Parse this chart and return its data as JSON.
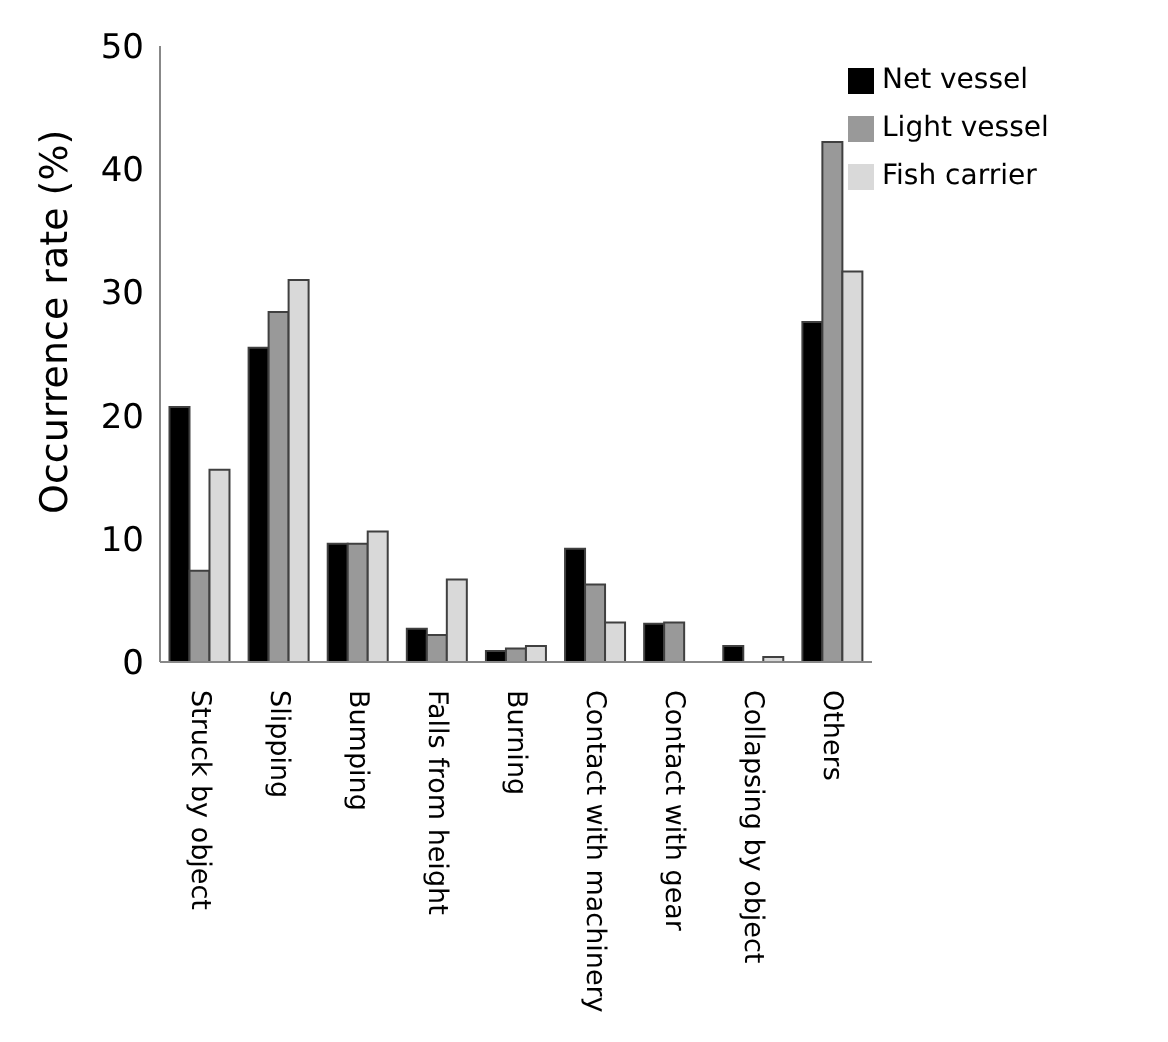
{
  "chart_data": {
    "type": "bar",
    "ylabel": "Occurrence rate (%)",
    "categories": [
      "Struck by object",
      "Slipping",
      "Bumping",
      "Falls from height",
      "Burning",
      "Contact with machinery",
      "Contact with gear",
      "Collapsing by object",
      "Others"
    ],
    "series": [
      {
        "name": "Net vessel",
        "color": "#000000",
        "values": [
          20.7,
          25.5,
          9.6,
          2.7,
          0.9,
          9.2,
          3.1,
          1.3,
          27.6
        ]
      },
      {
        "name": "Light vessel",
        "color": "#999999",
        "values": [
          7.4,
          28.4,
          9.6,
          2.2,
          1.1,
          6.3,
          3.2,
          0,
          42.2
        ]
      },
      {
        "name": "Fish carrier",
        "color": "#d9d9d9",
        "values": [
          15.6,
          31.0,
          10.6,
          6.7,
          1.3,
          3.2,
          0,
          0.4,
          31.7
        ]
      }
    ],
    "ylim": [
      0,
      50
    ],
    "yticks": [
      0,
      10,
      20,
      30,
      40,
      50
    ],
    "grid": false,
    "legend": "top right"
  }
}
